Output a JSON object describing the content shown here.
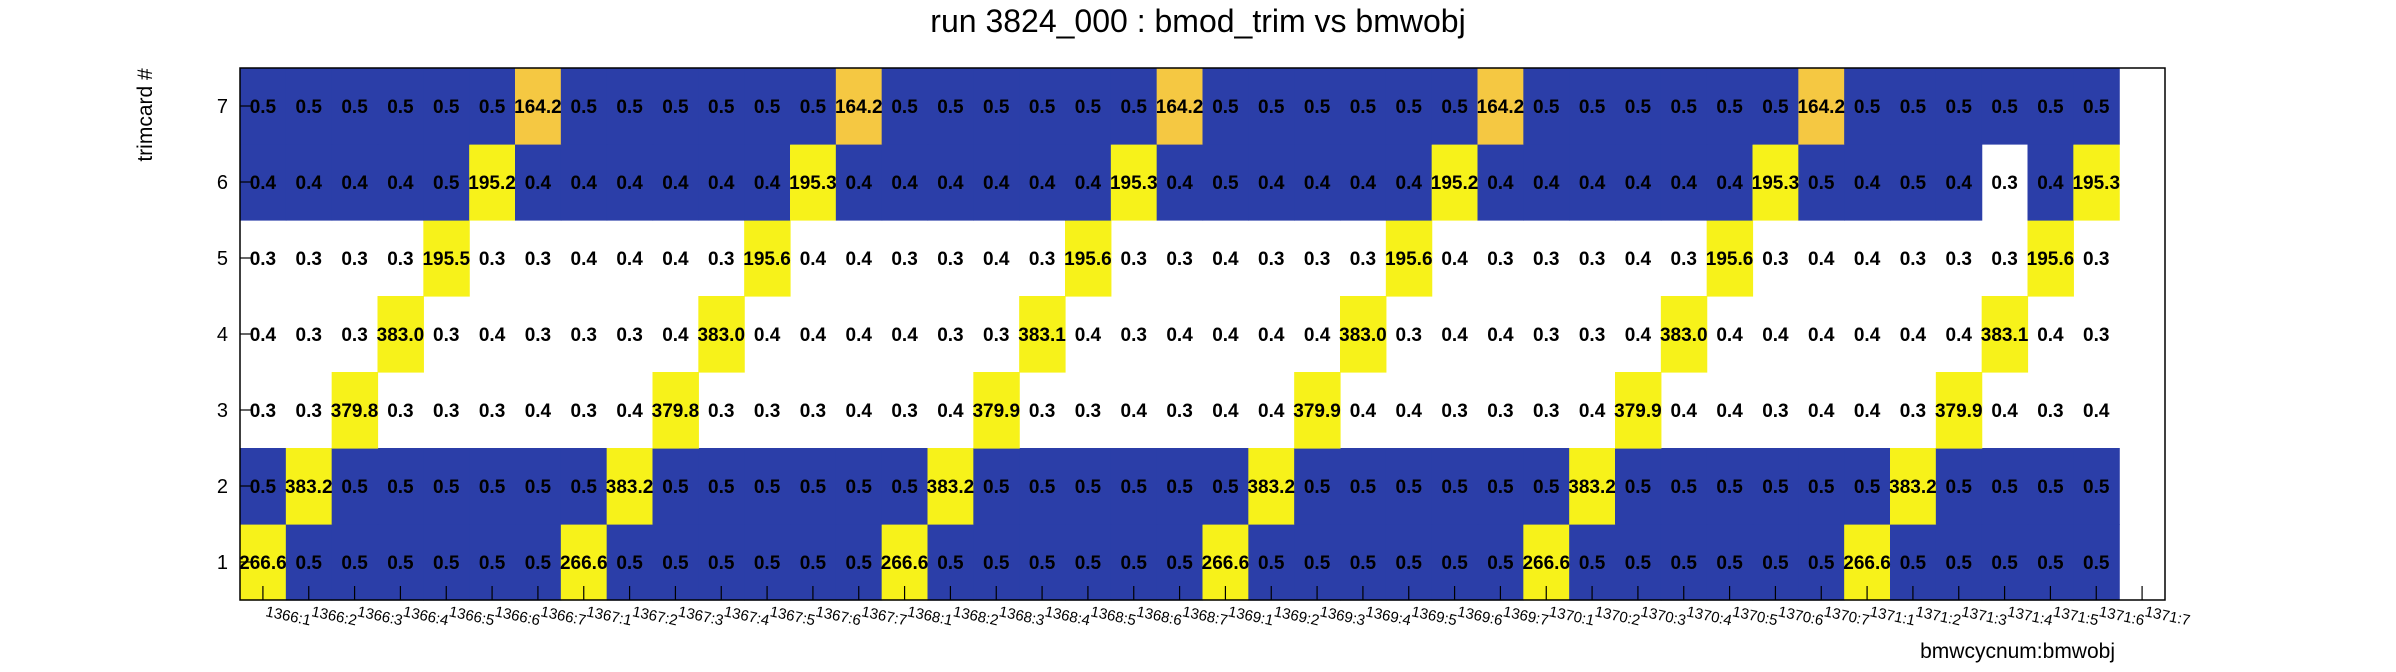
{
  "chart_data": {
    "type": "heatmap",
    "title": "run 3824_000 : bmod_trim vs bmwobj",
    "xlabel": "bmwcycnum:bmwobj",
    "ylabel": "trimcard #",
    "x_categories": [
      "1366:1",
      "1366:2",
      "1366:3",
      "1366:4",
      "1366:5",
      "1366:6",
      "1366:7",
      "1367:1",
      "1367:2",
      "1367:3",
      "1367:4",
      "1367:5",
      "1367:6",
      "1367:7",
      "1368:1",
      "1368:2",
      "1368:3",
      "1368:4",
      "1368:5",
      "1368:6",
      "1368:7",
      "1369:1",
      "1369:2",
      "1369:3",
      "1369:4",
      "1369:5",
      "1369:6",
      "1369:7",
      "1370:1",
      "1370:2",
      "1370:3",
      "1370:4",
      "1370:5",
      "1370:6",
      "1370:7",
      "1371:1",
      "1371:2",
      "1371:3",
      "1371:4",
      "1371:5",
      "1371:6",
      "1371:7"
    ],
    "y_categories": [
      "1",
      "2",
      "3",
      "4",
      "5",
      "6",
      "7"
    ],
    "values": [
      [
        266.6,
        0.5,
        0.5,
        0.5,
        0.5,
        0.5,
        0.5,
        266.6,
        0.5,
        0.5,
        0.5,
        0.5,
        0.5,
        0.5,
        266.6,
        0.5,
        0.5,
        0.5,
        0.5,
        0.5,
        0.5,
        266.6,
        0.5,
        0.5,
        0.5,
        0.5,
        0.5,
        0.5,
        266.6,
        0.5,
        0.5,
        0.5,
        0.5,
        0.5,
        0.5,
        266.6,
        0.5,
        0.5,
        0.5,
        0.5,
        0.5,
        null
      ],
      [
        0.5,
        383.2,
        0.5,
        0.5,
        0.5,
        0.5,
        0.5,
        0.5,
        383.2,
        0.5,
        0.5,
        0.5,
        0.5,
        0.5,
        0.5,
        383.2,
        0.5,
        0.5,
        0.5,
        0.5,
        0.5,
        0.5,
        383.2,
        0.5,
        0.5,
        0.5,
        0.5,
        0.5,
        0.5,
        383.2,
        0.5,
        0.5,
        0.5,
        0.5,
        0.5,
        0.5,
        383.2,
        0.5,
        0.5,
        0.5,
        0.5,
        null
      ],
      [
        0.3,
        0.3,
        379.8,
        0.3,
        0.3,
        0.3,
        0.4,
        0.3,
        0.4,
        379.8,
        0.3,
        0.3,
        0.3,
        0.4,
        0.3,
        0.4,
        379.9,
        0.3,
        0.3,
        0.4,
        0.3,
        0.4,
        0.4,
        379.9,
        0.4,
        0.4,
        0.3,
        0.3,
        0.3,
        0.4,
        379.9,
        0.4,
        0.4,
        0.3,
        0.4,
        0.4,
        0.3,
        379.9,
        0.4,
        0.3,
        0.4,
        null
      ],
      [
        0.4,
        0.3,
        0.3,
        383.0,
        0.3,
        0.4,
        0.3,
        0.3,
        0.3,
        0.4,
        383.0,
        0.4,
        0.4,
        0.4,
        0.4,
        0.3,
        0.3,
        383.1,
        0.4,
        0.3,
        0.4,
        0.4,
        0.4,
        0.4,
        383.0,
        0.3,
        0.4,
        0.4,
        0.3,
        0.3,
        0.4,
        383.0,
        0.4,
        0.4,
        0.4,
        0.4,
        0.4,
        0.4,
        383.1,
        0.4,
        0.3,
        null
      ],
      [
        0.3,
        0.3,
        0.3,
        0.3,
        195.5,
        0.3,
        0.3,
        0.4,
        0.4,
        0.4,
        0.3,
        195.6,
        0.4,
        0.4,
        0.3,
        0.3,
        0.4,
        0.3,
        195.6,
        0.3,
        0.3,
        0.4,
        0.3,
        0.3,
        0.3,
        195.6,
        0.4,
        0.3,
        0.3,
        0.3,
        0.4,
        0.3,
        195.6,
        0.3,
        0.4,
        0.4,
        0.3,
        0.3,
        0.3,
        195.6,
        0.3,
        null
      ],
      [
        0.4,
        0.4,
        0.4,
        0.4,
        0.5,
        195.2,
        0.4,
        0.4,
        0.4,
        0.4,
        0.4,
        0.4,
        195.3,
        0.4,
        0.4,
        0.4,
        0.4,
        0.4,
        0.4,
        195.3,
        0.4,
        0.5,
        0.4,
        0.4,
        0.4,
        0.4,
        195.2,
        0.4,
        0.4,
        0.4,
        0.4,
        0.4,
        0.4,
        195.3,
        0.5,
        0.4,
        0.5,
        0.4,
        0.3,
        0.4,
        195.3,
        null
      ],
      [
        0.5,
        0.5,
        0.5,
        0.5,
        0.5,
        0.5,
        164.2,
        0.5,
        0.5,
        0.5,
        0.5,
        0.5,
        0.5,
        164.2,
        0.5,
        0.5,
        0.5,
        0.5,
        0.5,
        0.5,
        164.2,
        0.5,
        0.5,
        0.5,
        0.5,
        0.5,
        0.5,
        164.2,
        0.5,
        0.5,
        0.5,
        0.5,
        0.5,
        0.5,
        164.2,
        0.5,
        0.5,
        0.5,
        0.5,
        0.5,
        0.5,
        null
      ]
    ],
    "fill_colors": {
      "low": "#2b3ea8",
      "mid_low": "#ffffff",
      "high": "#f7f21a",
      "top": "#f5c842"
    },
    "grid": false,
    "legend": "none"
  }
}
